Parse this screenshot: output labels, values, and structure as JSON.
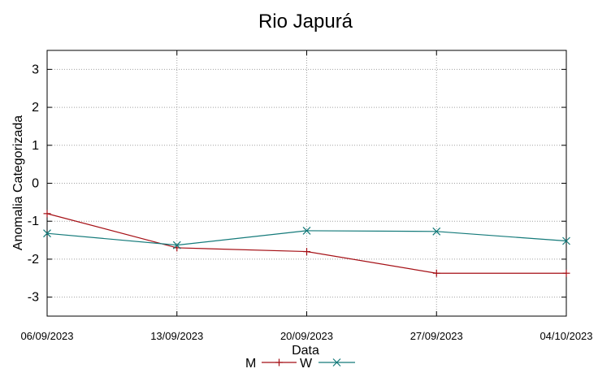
{
  "chart_data": {
    "type": "line",
    "title": "Rio Japurá",
    "xlabel": "Data",
    "ylabel": "Anomalia Categorizada",
    "categories": [
      "06/09/2023",
      "13/09/2023",
      "20/09/2023",
      "27/09/2023",
      "04/10/2023"
    ],
    "y_ticks": [
      "3",
      "2",
      "1",
      "0",
      "-1",
      "-2",
      "-3"
    ],
    "y_tick_values": [
      3,
      2,
      1,
      0,
      -1,
      -2,
      -3
    ],
    "ylim": [
      -3.5,
      3.5
    ],
    "grid": true,
    "legend_position": "bottom-center",
    "series": [
      {
        "name": "M",
        "color": "#a50f15",
        "marker": "plus",
        "values": [
          -0.8,
          -1.7,
          -1.8,
          -2.37,
          -2.37
        ]
      },
      {
        "name": "W",
        "color": "#147a7a",
        "marker": "cross",
        "values": [
          -1.32,
          -1.63,
          -1.25,
          -1.27,
          -1.52
        ]
      }
    ]
  }
}
